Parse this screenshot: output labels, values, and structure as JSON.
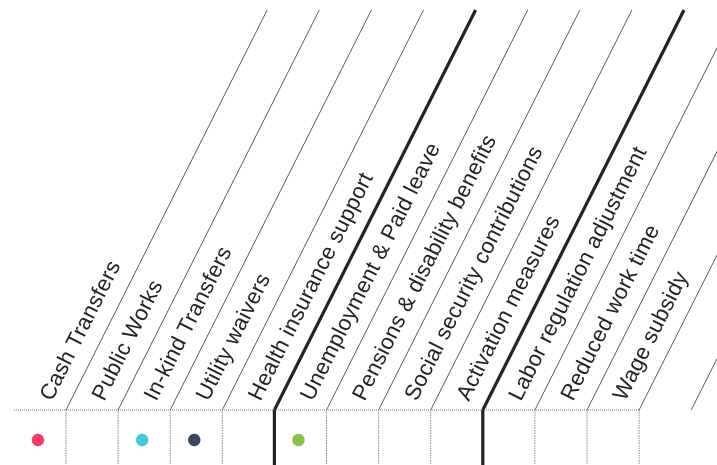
{
  "table": {
    "columns": [
      {
        "label": "Cash Transfers",
        "marker_color": "#f23d6d"
      },
      {
        "label": "Public Works",
        "marker_color": null
      },
      {
        "label": "In-kind Transfers",
        "marker_color": "#3ec8dc"
      },
      {
        "label": "Utility waivers",
        "marker_color": "#3a4a5e"
      },
      {
        "label": "Health insurance support",
        "marker_color": null
      },
      {
        "label": "Unemployment & Paid leave",
        "marker_color": "#8bc34a"
      },
      {
        "label": "Pensions & disability benefits",
        "marker_color": null
      },
      {
        "label": "Social security contributions",
        "marker_color": null
      },
      {
        "label": "Activation measures",
        "marker_color": null
      },
      {
        "label": "Labor regulation adjustment",
        "marker_color": null
      },
      {
        "label": "Reduced work time",
        "marker_color": null
      },
      {
        "label": "Wage subsidy",
        "marker_color": null
      }
    ],
    "group_divider_before": [
      4,
      8
    ],
    "colors": {
      "text": "#222222",
      "line": "#222222",
      "grid": "#888888"
    }
  }
}
